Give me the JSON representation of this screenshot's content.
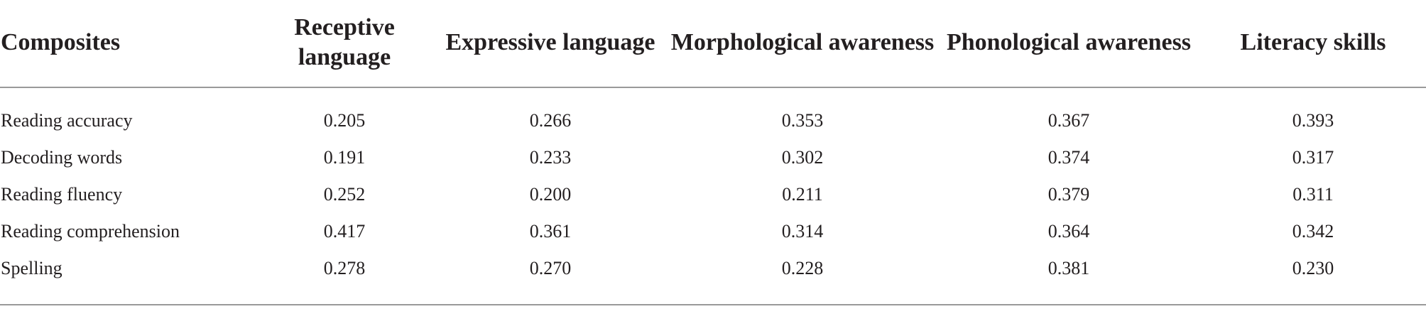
{
  "table": {
    "headers": [
      "Composites",
      "Receptive language",
      "Expressive language",
      "Morphological awareness",
      "Phonological awareness",
      "Literacy skills"
    ],
    "rows": [
      [
        "Reading accuracy",
        "0.205",
        "0.266",
        "0.353",
        "0.367",
        "0.393"
      ],
      [
        "Decoding words",
        "0.191",
        "0.233",
        "0.302",
        "0.374",
        "0.317"
      ],
      [
        "Reading fluency",
        "0.252",
        "0.200",
        "0.211",
        "0.379",
        "0.311"
      ],
      [
        "Reading comprehension",
        "0.417",
        "0.361",
        "0.314",
        "0.364",
        "0.342"
      ],
      [
        "Spelling",
        "0.278",
        "0.270",
        "0.228",
        "0.381",
        "0.230"
      ]
    ]
  }
}
